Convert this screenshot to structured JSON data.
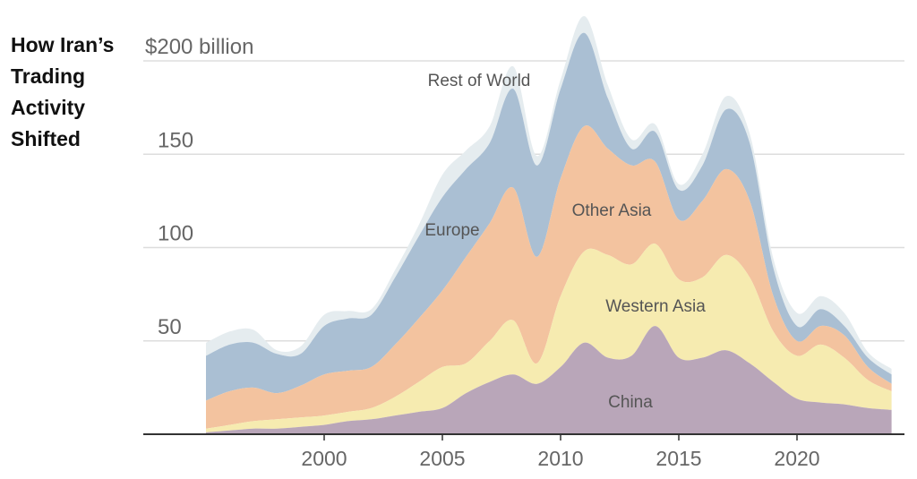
{
  "chart_data": {
    "type": "area",
    "stacked": true,
    "title_lines": [
      "How Iran’s",
      "Trading",
      "Activity",
      "Shifted"
    ],
    "x": [
      1995,
      1996,
      1997,
      1998,
      1999,
      2000,
      2001,
      2002,
      2003,
      2004,
      2005,
      2006,
      2007,
      2008,
      2009,
      2010,
      2011,
      2012,
      2013,
      2014,
      2015,
      2016,
      2017,
      2018,
      2019,
      2020,
      2021,
      2022,
      2023,
      2024
    ],
    "series": [
      {
        "name": "China",
        "color": "#b9a6b9",
        "values": [
          1,
          2,
          3,
          3,
          4,
          5,
          7,
          8,
          10,
          12,
          14,
          22,
          28,
          32,
          27,
          36,
          49,
          41,
          42,
          58,
          41,
          41,
          45,
          38,
          28,
          19,
          17,
          16,
          14,
          13
        ]
      },
      {
        "name": "Western Asia",
        "color": "#f6ebb0",
        "values": [
          2,
          3,
          4,
          5,
          5,
          5,
          5,
          6,
          10,
          16,
          22,
          16,
          22,
          29,
          11,
          38,
          49,
          55,
          49,
          44,
          42,
          43,
          51,
          46,
          27,
          23,
          31,
          25,
          15,
          10
        ]
      },
      {
        "name": "Other Asia",
        "color": "#f3c39f",
        "values": [
          15,
          18,
          18,
          14,
          17,
          22,
          22,
          22,
          28,
          34,
          41,
          57,
          63,
          71,
          57,
          63,
          67,
          57,
          53,
          44,
          32,
          41,
          46,
          41,
          19,
          8,
          10,
          12,
          7,
          4
        ]
      },
      {
        "name": "Europe",
        "color": "#aabfd3",
        "values": [
          24,
          25,
          24,
          21,
          17,
          26,
          28,
          28,
          36,
          44,
          50,
          47,
          43,
          53,
          49,
          48,
          50,
          27,
          9,
          16,
          16,
          19,
          32,
          31,
          15,
          8,
          9,
          5,
          5,
          5
        ]
      },
      {
        "name": "Rest of World",
        "color": "#e5ecef",
        "values": [
          7,
          7,
          7,
          2,
          4,
          6,
          4,
          3,
          4,
          6,
          12,
          10,
          9,
          12,
          5,
          5,
          9,
          7,
          5,
          4,
          3,
          6,
          7,
          5,
          5,
          7,
          7,
          7,
          3,
          3
        ]
      }
    ],
    "y_ticks": [
      {
        "value": 50,
        "label": "50"
      },
      {
        "value": 100,
        "label": "100"
      },
      {
        "value": 150,
        "label": "150"
      },
      {
        "value": 200,
        "label": "$200 billion"
      }
    ],
    "x_ticks": [
      {
        "value": 2000,
        "label": "2000"
      },
      {
        "value": 2005,
        "label": "2005"
      },
      {
        "value": 2010,
        "label": "2010"
      },
      {
        "value": 2015,
        "label": "2015"
      },
      {
        "value": 2020,
        "label": "2020"
      }
    ],
    "ylim": [
      0,
      200
    ],
    "xlim": [
      1995,
      2024
    ],
    "grid": true,
    "legend": "inline labels"
  }
}
